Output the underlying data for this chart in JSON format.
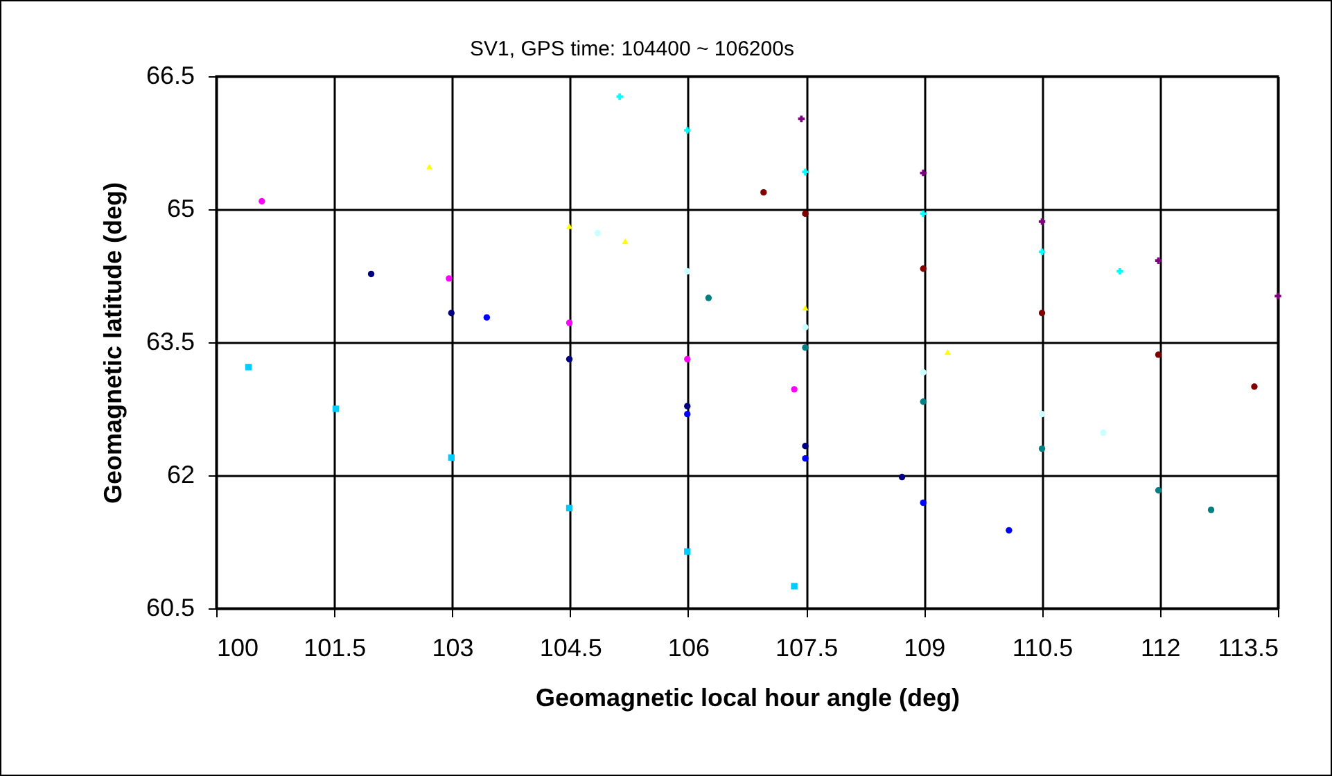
{
  "chart_data": {
    "type": "scatter",
    "title": "SV1, GPS time: 104400 ~ 106200s",
    "xlabel": "Geomagnetic local hour angle (deg)",
    "ylabel": "Geomagnetic latitude (deg)",
    "xlim": [
      100,
      113.5
    ],
    "xticks": [
      100,
      101.5,
      103,
      104.5,
      106,
      107.5,
      109,
      110.5,
      112,
      113.5
    ],
    "ylim": [
      60.5,
      66.5
    ],
    "yticks": [
      60.5,
      62,
      63.5,
      65,
      66.5
    ],
    "grid": true,
    "legend": false,
    "series": [
      {
        "color": "#00ccff",
        "marker": "square",
        "x": [
          100.41,
          101.52,
          102.99,
          104.49,
          105.99,
          107.35
        ],
        "values": [
          63.22,
          62.75,
          62.2,
          61.63,
          61.14,
          60.75
        ]
      },
      {
        "color": "#ff00ff",
        "marker": "circle",
        "x": [
          100.58,
          102.96,
          104.49,
          105.99,
          107.35
        ],
        "values": [
          65.09,
          64.22,
          63.72,
          63.31,
          62.97
        ]
      },
      {
        "color": "#000080",
        "marker": "circle",
        "x": [
          101.97,
          102.99,
          104.49,
          105.99,
          107.49,
          108.72
        ],
        "values": [
          64.27,
          63.83,
          63.31,
          62.78,
          62.33,
          61.98
        ]
      },
      {
        "color": "#0000ff",
        "marker": "circle",
        "x": [
          103.44,
          105.99,
          107.49,
          108.99,
          110.08
        ],
        "values": [
          63.78,
          62.69,
          62.19,
          61.69,
          61.38
        ]
      },
      {
        "color": "#ffff00",
        "marker": "triangle",
        "x": [
          102.71,
          104.49,
          105.2,
          107.49,
          109.3
        ],
        "values": [
          65.48,
          64.81,
          64.64,
          63.89,
          63.39
        ]
      },
      {
        "color": "#00ffff",
        "marker": "cross",
        "x": [
          105.13,
          105.99,
          107.49,
          108.99,
          110.5,
          111.49
        ],
        "values": [
          66.27,
          65.89,
          65.42,
          64.95,
          64.52,
          64.3
        ]
      },
      {
        "color": "#ccffff",
        "marker": "circle",
        "x": [
          104.85,
          105.99,
          107.49,
          108.99,
          110.5,
          111.28
        ],
        "values": [
          64.73,
          64.3,
          63.67,
          63.16,
          62.69,
          62.48
        ]
      },
      {
        "color": "#008080",
        "marker": "circle",
        "x": [
          106.26,
          107.49,
          108.99,
          110.5,
          111.98,
          112.65
        ],
        "values": [
          64.0,
          63.44,
          62.83,
          62.3,
          61.83,
          61.61
        ]
      },
      {
        "color": "#800000",
        "marker": "circle",
        "x": [
          106.96,
          107.49,
          108.99,
          110.5,
          111.98,
          113.2
        ],
        "values": [
          65.19,
          64.95,
          64.33,
          63.83,
          63.36,
          63.0
        ]
      },
      {
        "color": "#800080",
        "marker": "cross",
        "x": [
          107.44,
          108.99,
          110.5,
          111.98,
          113.5
        ],
        "values": [
          66.02,
          65.41,
          64.86,
          64.42,
          64.02
        ]
      }
    ]
  }
}
